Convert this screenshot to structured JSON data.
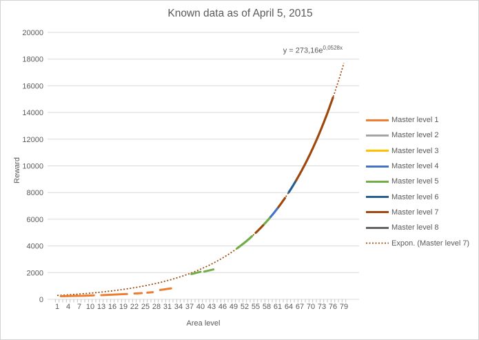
{
  "chart_data": {
    "type": "line",
    "title": "Known data as of April 5, 2015",
    "xlabel": "Area level",
    "ylabel": "Reward",
    "xlim": [
      1,
      79
    ],
    "ylim": [
      0,
      20000
    ],
    "grid": true,
    "legend_position": "right",
    "x_tick_labels": [
      1,
      4,
      7,
      10,
      13,
      16,
      19,
      22,
      25,
      28,
      31,
      34,
      37,
      40,
      43,
      46,
      49,
      52,
      55,
      58,
      61,
      64,
      67,
      70,
      73,
      76,
      79
    ],
    "y_tick_labels": [
      "0",
      "2000",
      "4000",
      "6000",
      "8000",
      "10000",
      "12000",
      "14000",
      "16000",
      "18000",
      "20000"
    ],
    "trendline": {
      "name": "Expon. (Master level 7)",
      "label_base": "y = 273,16e",
      "label_exp": "0,0528x",
      "equation_text": "y = 273,16e^(0,0528x)",
      "a": 273.16,
      "b": 0.0528,
      "x_range": [
        1,
        79
      ],
      "style": "dotted",
      "color": "#9E480E"
    },
    "series": [
      {
        "name": "Master level 1",
        "color": "#ED7D31",
        "points_segments": [
          [
            [
              2,
              235
            ],
            [
              5,
              255
            ],
            [
              8,
              262
            ],
            [
              11,
              300
            ]
          ],
          [
            [
              13,
              310
            ],
            [
              20,
              400
            ]
          ],
          [
            [
              22,
              435
            ],
            [
              24,
              465
            ]
          ],
          [
            [
              25.5,
              495
            ],
            [
              27,
              540
            ]
          ],
          [
            [
              29,
              700
            ],
            [
              32,
              820
            ]
          ]
        ]
      },
      {
        "name": "Master level 2",
        "color": "#A5A5A5"
      },
      {
        "name": "Master level 3",
        "color": "#FFC000"
      },
      {
        "name": "Master level 4",
        "color": "#4472C4",
        "curve_segments": [
          [
            58.8,
            61.2
          ]
        ]
      },
      {
        "name": "Master level 5",
        "color": "#70AD47",
        "points_segments": [
          [
            [
              37.5,
              1890
            ],
            [
              40,
              2060
            ]
          ],
          [
            [
              41,
              2080
            ],
            [
              43.5,
              2240
            ]
          ]
        ],
        "curve_segments": [
          [
            50,
            54
          ],
          [
            57,
            58.8
          ]
        ]
      },
      {
        "name": "Master level 6",
        "color": "#255E91",
        "curve_segments": [
          [
            64,
            66
          ]
        ]
      },
      {
        "name": "Master level 7",
        "color": "#9E480E",
        "curve_segments": [
          [
            55,
            57
          ],
          [
            61.2,
            63.1
          ],
          [
            66,
            76
          ]
        ]
      },
      {
        "name": "Master level 8",
        "color": "#636363"
      }
    ],
    "colors": {
      "grid": "#D9D9D9",
      "axis": "#D9D9D9",
      "tick": "#BFBFBF",
      "text": "#595959"
    }
  }
}
